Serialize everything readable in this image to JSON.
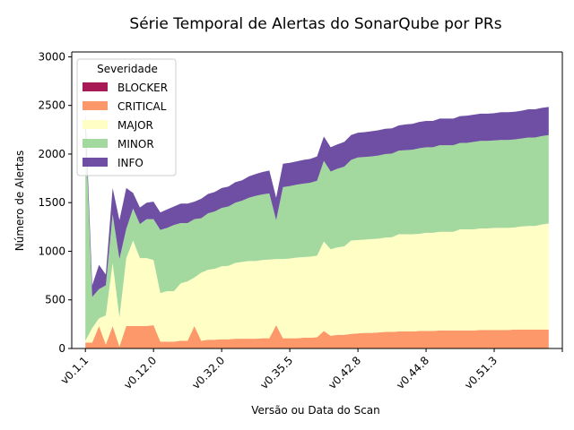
{
  "chart_data": {
    "type": "area",
    "stacked": true,
    "title": "Série Temporal de Alertas do SonarQube por PRs",
    "xlabel": "Versão ou Data do Scan",
    "ylabel": "Número de Alertas",
    "ylim": [
      0,
      3050
    ],
    "y_ticks": [
      0,
      500,
      1000,
      1500,
      2000,
      2500,
      3000
    ],
    "x_ticks": [
      {
        "pos": 0,
        "label": "v0.1.1"
      },
      {
        "pos": 10,
        "label": "v0.12.0"
      },
      {
        "pos": 20,
        "label": "v0.32.0"
      },
      {
        "pos": 30,
        "label": "v0.35.5"
      },
      {
        "pos": 40,
        "label": "v0.42.8"
      },
      {
        "pos": 50,
        "label": "v0.44.8"
      },
      {
        "pos": 60,
        "label": "v0.51.3"
      },
      {
        "pos": 70,
        "label": ""
      }
    ],
    "xlim": [
      -2,
      70
    ],
    "grid": false,
    "legend": {
      "title": "Severidade",
      "placement": "top-left"
    },
    "x": [
      0,
      1,
      2,
      3,
      4,
      5,
      6,
      7,
      8,
      9,
      10,
      11,
      12,
      13,
      14,
      15,
      16,
      17,
      18,
      19,
      20,
      21,
      22,
      23,
      24,
      25,
      26,
      27,
      28,
      29,
      30,
      31,
      32,
      33,
      34,
      35,
      36,
      37,
      38,
      39,
      40,
      41,
      42,
      43,
      44,
      45,
      46,
      47,
      48,
      49,
      50,
      51,
      52,
      53,
      54,
      55,
      56,
      57,
      58,
      59,
      60,
      61,
      62,
      63,
      64,
      65,
      66,
      67,
      68
    ],
    "series": [
      {
        "name": "BLOCKER",
        "color": "#9e0142",
        "values": [
          0,
          0,
          0,
          0,
          0,
          0,
          0,
          0,
          0,
          0,
          0,
          0,
          0,
          0,
          0,
          0,
          0,
          0,
          0,
          0,
          0,
          0,
          0,
          0,
          0,
          0,
          0,
          0,
          0,
          0,
          0,
          0,
          0,
          0,
          0,
          0,
          0,
          0,
          0,
          0,
          0,
          0,
          0,
          0,
          0,
          0,
          0,
          0,
          0,
          0,
          0,
          0,
          0,
          0,
          0,
          0,
          0,
          0,
          0,
          0,
          0,
          0,
          0,
          0,
          0,
          0,
          0,
          0,
          0
        ]
      },
      {
        "name": "CRITICAL",
        "color": "#fc8d59",
        "values": [
          60,
          60,
          230,
          40,
          230,
          20,
          230,
          230,
          230,
          230,
          240,
          70,
          70,
          70,
          80,
          80,
          230,
          80,
          90,
          90,
          95,
          95,
          100,
          100,
          100,
          100,
          105,
          105,
          240,
          105,
          105,
          105,
          110,
          110,
          115,
          180,
          130,
          140,
          140,
          150,
          155,
          160,
          160,
          165,
          170,
          170,
          175,
          175,
          175,
          180,
          180,
          180,
          185,
          185,
          185,
          185,
          185,
          185,
          190,
          190,
          190,
          190,
          190,
          195,
          195,
          195,
          195,
          195,
          195
        ]
      },
      {
        "name": "MAJOR",
        "color": "#ffffbf",
        "values": [
          20,
          150,
          80,
          300,
          650,
          300,
          700,
          880,
          700,
          700,
          670,
          500,
          520,
          520,
          590,
          610,
          500,
          700,
          720,
          730,
          750,
          755,
          780,
          790,
          800,
          800,
          805,
          810,
          680,
          815,
          820,
          830,
          830,
          835,
          840,
          920,
          890,
          900,
          910,
          960,
          960,
          960,
          965,
          965,
          970,
          975,
          1000,
          1000,
          1000,
          1000,
          1010,
          1010,
          1015,
          1015,
          1015,
          1040,
          1040,
          1040,
          1045,
          1045,
          1050,
          1050,
          1050,
          1050,
          1060,
          1065,
          1065,
          1080,
          1090
        ]
      },
      {
        "name": "MINOR",
        "color": "#99d594",
        "values": [
          2220,
          320,
          300,
          310,
          500,
          600,
          300,
          330,
          350,
          400,
          420,
          650,
          650,
          680,
          620,
          600,
          600,
          560,
          580,
          590,
          600,
          610,
          620,
          630,
          650,
          670,
          675,
          680,
          400,
          740,
          745,
          750,
          755,
          760,
          770,
          830,
          800,
          810,
          820,
          830,
          850,
          850,
          850,
          855,
          860,
          860,
          860,
          865,
          870,
          880,
          880,
          880,
          890,
          890,
          890,
          890,
          890,
          900,
          900,
          900,
          900,
          905,
          905,
          905,
          905,
          910,
          910,
          910,
          910
        ]
      },
      {
        "name": "INFO",
        "color": "#5e3c99",
        "values": [
          150,
          120,
          250,
          110,
          270,
          400,
          420,
          160,
          170,
          170,
          180,
          180,
          190,
          190,
          200,
          200,
          180,
          200,
          200,
          200,
          205,
          205,
          210,
          210,
          220,
          225,
          230,
          235,
          230,
          240,
          240,
          240,
          245,
          245,
          250,
          250,
          250,
          250,
          255,
          255,
          255,
          255,
          260,
          260,
          260,
          260,
          260,
          265,
          265,
          270,
          270,
          270,
          275,
          275,
          275,
          275,
          280,
          280,
          280,
          280,
          280,
          285,
          285,
          285,
          285,
          290,
          290,
          290,
          290
        ]
      }
    ]
  }
}
